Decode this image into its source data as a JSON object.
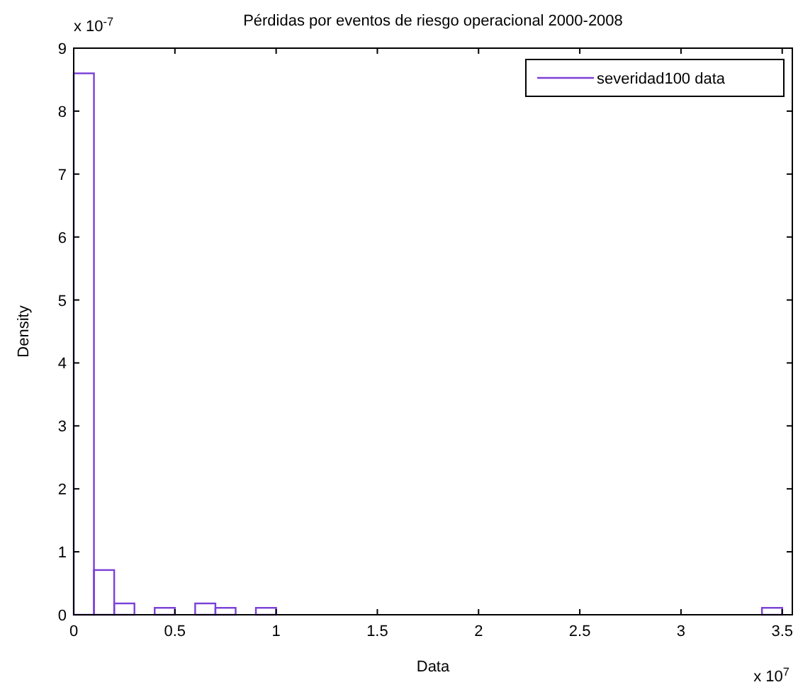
{
  "chart_data": {
    "type": "histogram",
    "title": "Pérdidas por eventos de riesgo operacional 2000-2008",
    "xlabel": "Data",
    "ylabel": "Density",
    "bins": [
      0,
      0.1,
      0.2,
      0.3,
      0.4,
      0.5,
      0.6,
      0.7,
      0.8,
      0.9,
      1,
      1.1,
      1.2,
      1.3,
      1.4,
      1.5,
      1.6,
      1.7,
      1.8,
      1.9,
      2,
      2.1,
      2.2,
      2.3,
      2.4,
      2.5,
      2.6,
      2.7,
      2.8,
      2.9,
      3,
      3.1,
      3.2,
      3.3,
      3.4,
      3.5
    ],
    "series": [
      {
        "name": "severidad100 data",
        "color": "#7b3fd6",
        "values": [
          8.6,
          0.71,
          0.18,
          0,
          0.11,
          0,
          0.18,
          0.11,
          0,
          0.11,
          0,
          0,
          0,
          0,
          0,
          0,
          0,
          0,
          0,
          0,
          0,
          0,
          0,
          0,
          0,
          0,
          0,
          0,
          0,
          0,
          0,
          0,
          0,
          0,
          0.11
        ]
      }
    ],
    "xlim": [
      0,
      3.55
    ],
    "xticks": [
      0,
      0.5,
      1,
      1.5,
      2,
      2.5,
      3,
      3.5
    ],
    "ylim": [
      0,
      9
    ],
    "yticks": [
      0,
      1,
      2,
      3,
      4,
      5,
      6,
      7,
      8,
      9
    ],
    "annotations": [
      "x 10$^{-7}$",
      "x 10$^{7}$"
    ],
    "legend": "top right",
    "grid": false
  }
}
